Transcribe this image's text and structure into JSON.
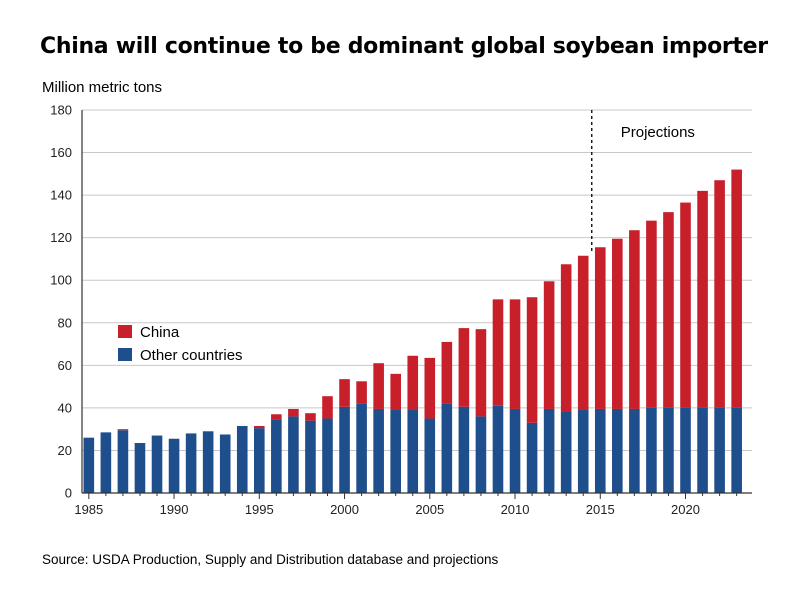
{
  "chart_data": {
    "type": "bar",
    "stacked": true,
    "title": "China will continue to be dominant global soybean importer",
    "ylabel": "Million metric tons",
    "xlabel": "",
    "source": "Source: USDA Production, Supply and Distribution database and projections",
    "ylim": [
      0,
      180
    ],
    "yticks": [
      0,
      20,
      40,
      60,
      80,
      100,
      120,
      140,
      160,
      180
    ],
    "xtick_labels": [
      "1985",
      "1990",
      "1995",
      "2000",
      "2005",
      "2010",
      "2015",
      "2020"
    ],
    "grid": "horizontal",
    "legend_position": "left-middle",
    "annotation": {
      "label": "Projections",
      "x": 2014.5
    },
    "x": [
      1985,
      1986,
      1987,
      1988,
      1989,
      1990,
      1991,
      1992,
      1993,
      1994,
      1995,
      1996,
      1997,
      1998,
      1999,
      2000,
      2001,
      2002,
      2003,
      2004,
      2005,
      2006,
      2007,
      2008,
      2009,
      2010,
      2011,
      2012,
      2013,
      2014,
      2015,
      2016,
      2017,
      2018,
      2019,
      2020,
      2021,
      2022,
      2023
    ],
    "series": [
      {
        "name": "Other countries",
        "color": "#1F4E8C",
        "values": [
          26,
          28.5,
          29.5,
          23.5,
          27,
          25.5,
          28,
          29,
          27.5,
          31.5,
          30.5,
          34.5,
          36,
          34,
          35,
          40.5,
          42,
          39.5,
          39,
          39,
          35,
          42,
          40.5,
          36,
          41,
          39.5,
          33,
          39.5,
          38.5,
          39,
          39.5,
          39.5,
          39.5,
          40,
          40,
          40,
          40,
          40,
          40
        ]
      },
      {
        "name": "China",
        "color": "#C8202B",
        "values": [
          0,
          0,
          0.5,
          0,
          0,
          0,
          0,
          0,
          0,
          0,
          1,
          2.5,
          3.5,
          3.5,
          10.5,
          13,
          10.5,
          21.5,
          17,
          25.5,
          28.5,
          29,
          37,
          41,
          50,
          51.5,
          59,
          60,
          69,
          72.5,
          76,
          80,
          84,
          88,
          92,
          96.5,
          102,
          107,
          112
        ]
      }
    ]
  }
}
